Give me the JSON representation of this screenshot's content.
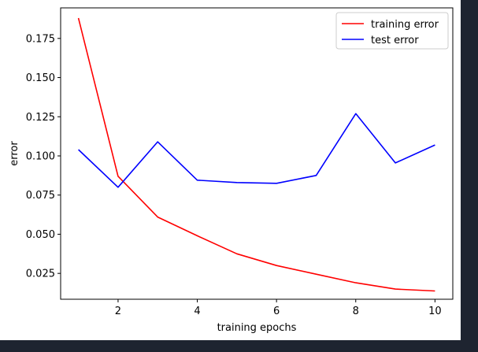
{
  "chart_data": {
    "type": "line",
    "title": "",
    "xlabel": "training epochs",
    "ylabel": "error",
    "xlim": [
      0.55,
      10.45
    ],
    "ylim": [
      0.0085,
      0.1945
    ],
    "xticks": [
      2,
      4,
      6,
      8,
      10
    ],
    "yticks": [
      0.025,
      0.05,
      0.075,
      0.1,
      0.125,
      0.15,
      0.175
    ],
    "ytick_labels": [
      "0.025",
      "0.050",
      "0.075",
      "0.100",
      "0.125",
      "0.150",
      "0.175"
    ],
    "grid": false,
    "legend_position": "top-right",
    "x": [
      1,
      2,
      3,
      4,
      5,
      6,
      7,
      8,
      9,
      10
    ],
    "series": [
      {
        "name": "training error",
        "color": "#ff0000",
        "values": [
          0.188,
          0.087,
          0.061,
          0.049,
          0.0375,
          0.03,
          0.0245,
          0.019,
          0.015,
          0.0138
        ]
      },
      {
        "name": "test error",
        "color": "#0000ff",
        "values": [
          0.104,
          0.08,
          0.109,
          0.0845,
          0.083,
          0.0825,
          0.0875,
          0.127,
          0.0955,
          0.107
        ]
      }
    ]
  }
}
